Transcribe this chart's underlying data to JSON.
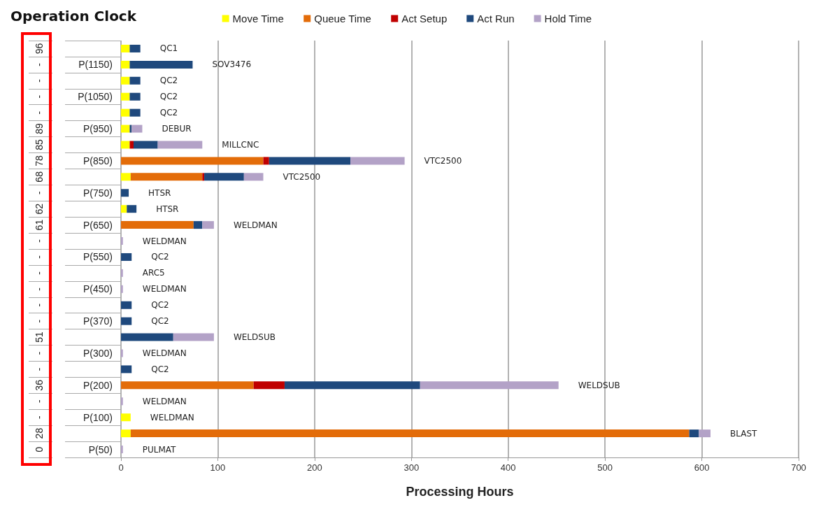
{
  "chart_data": {
    "type": "bar",
    "orientation": "horizontal",
    "stacked": true,
    "title": "Operation Clock",
    "xlabel": "Processing Hours",
    "categories": [
      null,
      "P(1150)",
      null,
      "P(1050)",
      null,
      "P(950)",
      null,
      "P(850)",
      null,
      "P(750)",
      null,
      "P(650)",
      null,
      "P(550)",
      null,
      "P(450)",
      null,
      "P(370)",
      null,
      "P(300)",
      null,
      "P(200)",
      null,
      "P(100)",
      null,
      "P(50)"
    ],
    "y2_categories": [
      "96",
      "-",
      "-",
      "-",
      "-",
      "89",
      "85",
      "78",
      "68",
      "-",
      "62",
      "61",
      "-",
      "-",
      "-",
      "-",
      "-",
      "-",
      "51",
      "-",
      "-",
      "36",
      "-",
      "-",
      "28",
      "0"
    ],
    "value_labels": [
      "QC1",
      "SOV3476",
      "QC2",
      "QC2",
      "QC2",
      "DEBUR",
      "MILLCNC",
      "VTC2500",
      "VTC2500",
      "HTSR",
      "HTSR",
      "WELDMAN",
      "WELDMAN",
      "QC2",
      "ARC5",
      "WELDMAN",
      "QC2",
      "QC2",
      "WELDSUB",
      "WELDMAN",
      "QC2",
      "WELDSUB",
      "WELDMAN",
      "WELDMAN",
      "BLAST",
      "PULMAT"
    ],
    "series": [
      {
        "name": "Move Time",
        "color": "#ffff00",
        "values": [
          9,
          9,
          9,
          9,
          9,
          9,
          9,
          0,
          10,
          0,
          6,
          0,
          0,
          0,
          0,
          0,
          0,
          0,
          0,
          0,
          0,
          0,
          0,
          10,
          10,
          0
        ]
      },
      {
        "name": "Queue Time",
        "color": "#e36c09",
        "values": [
          0,
          0,
          0,
          0,
          0,
          0,
          0,
          147,
          74,
          0,
          0,
          75,
          0,
          0,
          0,
          0,
          0,
          0,
          0,
          0,
          0,
          137,
          0,
          0,
          577,
          0
        ]
      },
      {
        "name": "Act Setup",
        "color": "#c00000",
        "values": [
          0,
          0,
          0,
          0,
          0,
          0,
          4,
          6,
          2,
          0,
          0,
          0,
          0,
          0,
          0,
          0,
          0,
          0,
          0,
          0,
          0,
          32,
          0,
          0,
          0,
          0
        ]
      },
      {
        "name": "Act Run",
        "color": "#1f497d",
        "values": [
          11,
          65,
          11,
          11,
          11,
          2,
          25,
          84,
          41,
          8,
          10,
          9,
          0,
          11,
          0,
          0,
          11,
          11,
          54,
          0,
          11,
          140,
          0,
          0,
          10,
          0
        ]
      },
      {
        "name": "Hold Time",
        "color": "#b3a2c7",
        "values": [
          0,
          0,
          0,
          0,
          0,
          11,
          46,
          56,
          20,
          0,
          0,
          12,
          2,
          0,
          2,
          2,
          0,
          0,
          42,
          2,
          0,
          143,
          2,
          0,
          12,
          2
        ]
      }
    ],
    "xlim": [
      0,
      700
    ],
    "xticks": [
      0,
      100,
      200,
      300,
      400,
      500,
      600,
      700
    ],
    "grid": "x",
    "legend": "top"
  }
}
